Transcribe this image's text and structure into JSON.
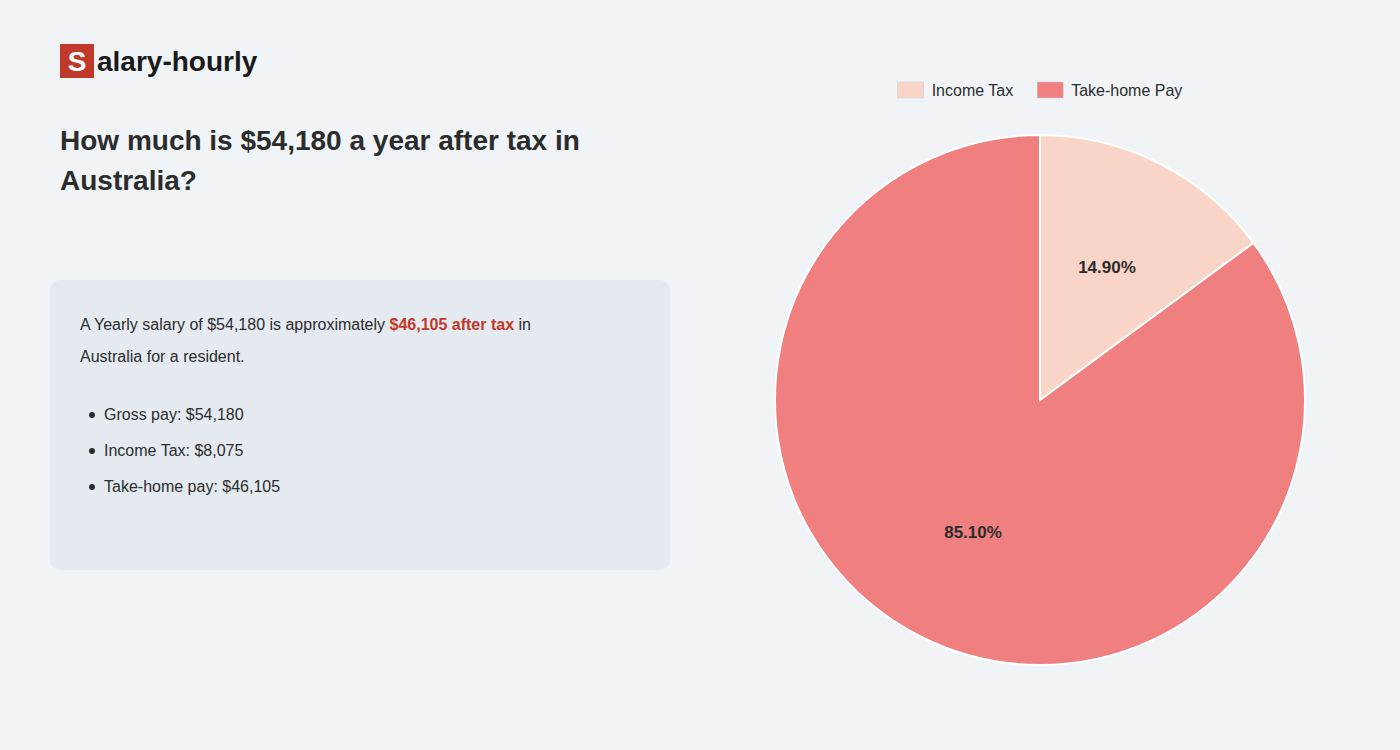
{
  "chart_data": {
    "type": "pie",
    "title": "How much is $54,180 a year after tax in\nAustralia?",
    "annotations": [
      {
        "text": "S"
      },
      {
        "text": "alary-hourly"
      },
      {
        "text": "A Yearly salary of $54,180 is approximately "
      },
      {
        "text": "$46,105 after tax",
        "color": "#c0392b"
      },
      {
        "text": " in"
      },
      {
        "text": "Australia for a resident."
      },
      {
        "text": "Gross pay: $54,180"
      },
      {
        "text": "Income Tax: $8,075"
      },
      {
        "text": "Take-home pay: $46,105"
      }
    ],
    "categories": [
      "Income Tax",
      "Take-home Pay"
    ],
    "values": [
      14.9,
      85.1
    ],
    "value_labels": [
      "14.90%",
      "85.10%"
    ],
    "colors": [
      "#f9d5c8",
      "#f08080"
    ],
    "data_labels": true,
    "legend": "top"
  }
}
